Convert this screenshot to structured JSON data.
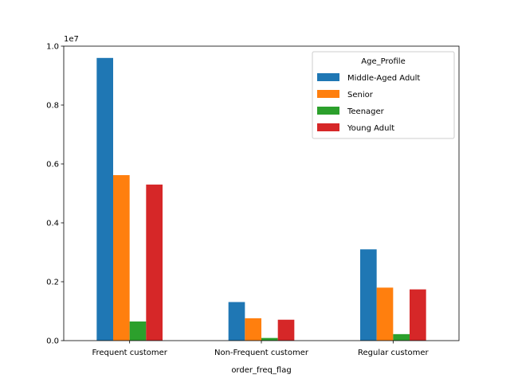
{
  "chart_data": {
    "type": "bar",
    "title": "",
    "xlabel": "order_freq_flag",
    "ylabel": "",
    "y_offset_label": "1e7",
    "categories": [
      "Frequent customer",
      "Non-Frequent customer",
      "Regular customer"
    ],
    "series": [
      {
        "name": "Middle-Aged Adult",
        "color": "#1f77b4",
        "values": [
          9600000,
          1310000,
          3100000
        ]
      },
      {
        "name": "Senior",
        "color": "#ff7f0e",
        "values": [
          5620000,
          760000,
          1800000
        ]
      },
      {
        "name": "Teenager",
        "color": "#2ca02c",
        "values": [
          650000,
          90000,
          220000
        ]
      },
      {
        "name": "Young Adult",
        "color": "#d62728",
        "values": [
          5300000,
          710000,
          1740000
        ]
      }
    ],
    "ylim": [
      0,
      10000000
    ],
    "y_ticks": [
      0,
      2000000,
      4000000,
      6000000,
      8000000,
      10000000
    ],
    "y_tick_labels": [
      "0.0",
      "0.2",
      "0.4",
      "0.6",
      "0.8",
      "1.0"
    ],
    "grid": false,
    "legend": {
      "title": "Age_Profile",
      "position": "top-right"
    }
  }
}
